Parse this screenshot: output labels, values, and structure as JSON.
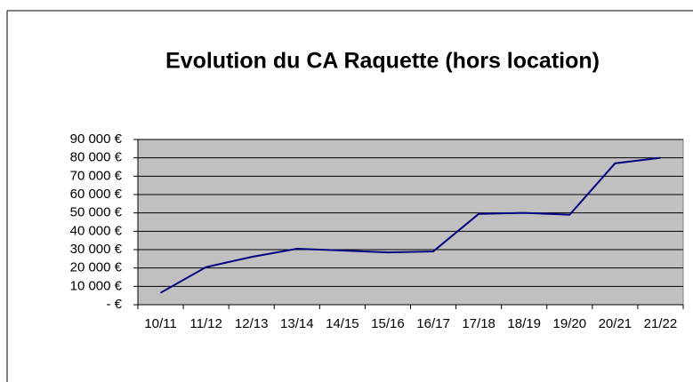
{
  "chart_data": {
    "type": "line",
    "title": "Evolution du CA Raquette (hors location)",
    "categories": [
      "10/11",
      "11/12",
      "12/13",
      "13/14",
      "14/15",
      "15/16",
      "16/17",
      "17/18",
      "18/19",
      "19/20",
      "20/21",
      "21/22"
    ],
    "values": [
      6500,
      20500,
      26000,
      30500,
      29500,
      28500,
      29000,
      49500,
      50000,
      49000,
      77000,
      80000
    ],
    "color": "#000080",
    "ylim": [
      0,
      90000
    ],
    "yticks": [
      {
        "value": 0,
        "label": "-   €"
      },
      {
        "value": 10000,
        "label": "10 000 €"
      },
      {
        "value": 20000,
        "label": "20 000 €"
      },
      {
        "value": 30000,
        "label": "30 000 €"
      },
      {
        "value": 40000,
        "label": "40 000 €"
      },
      {
        "value": 50000,
        "label": "50 000 €"
      },
      {
        "value": 60000,
        "label": "60 000 €"
      },
      {
        "value": 70000,
        "label": "70 000 €"
      },
      {
        "value": 80000,
        "label": "80 000 €"
      },
      {
        "value": 90000,
        "label": "90 000 €"
      }
    ],
    "grid": true
  }
}
